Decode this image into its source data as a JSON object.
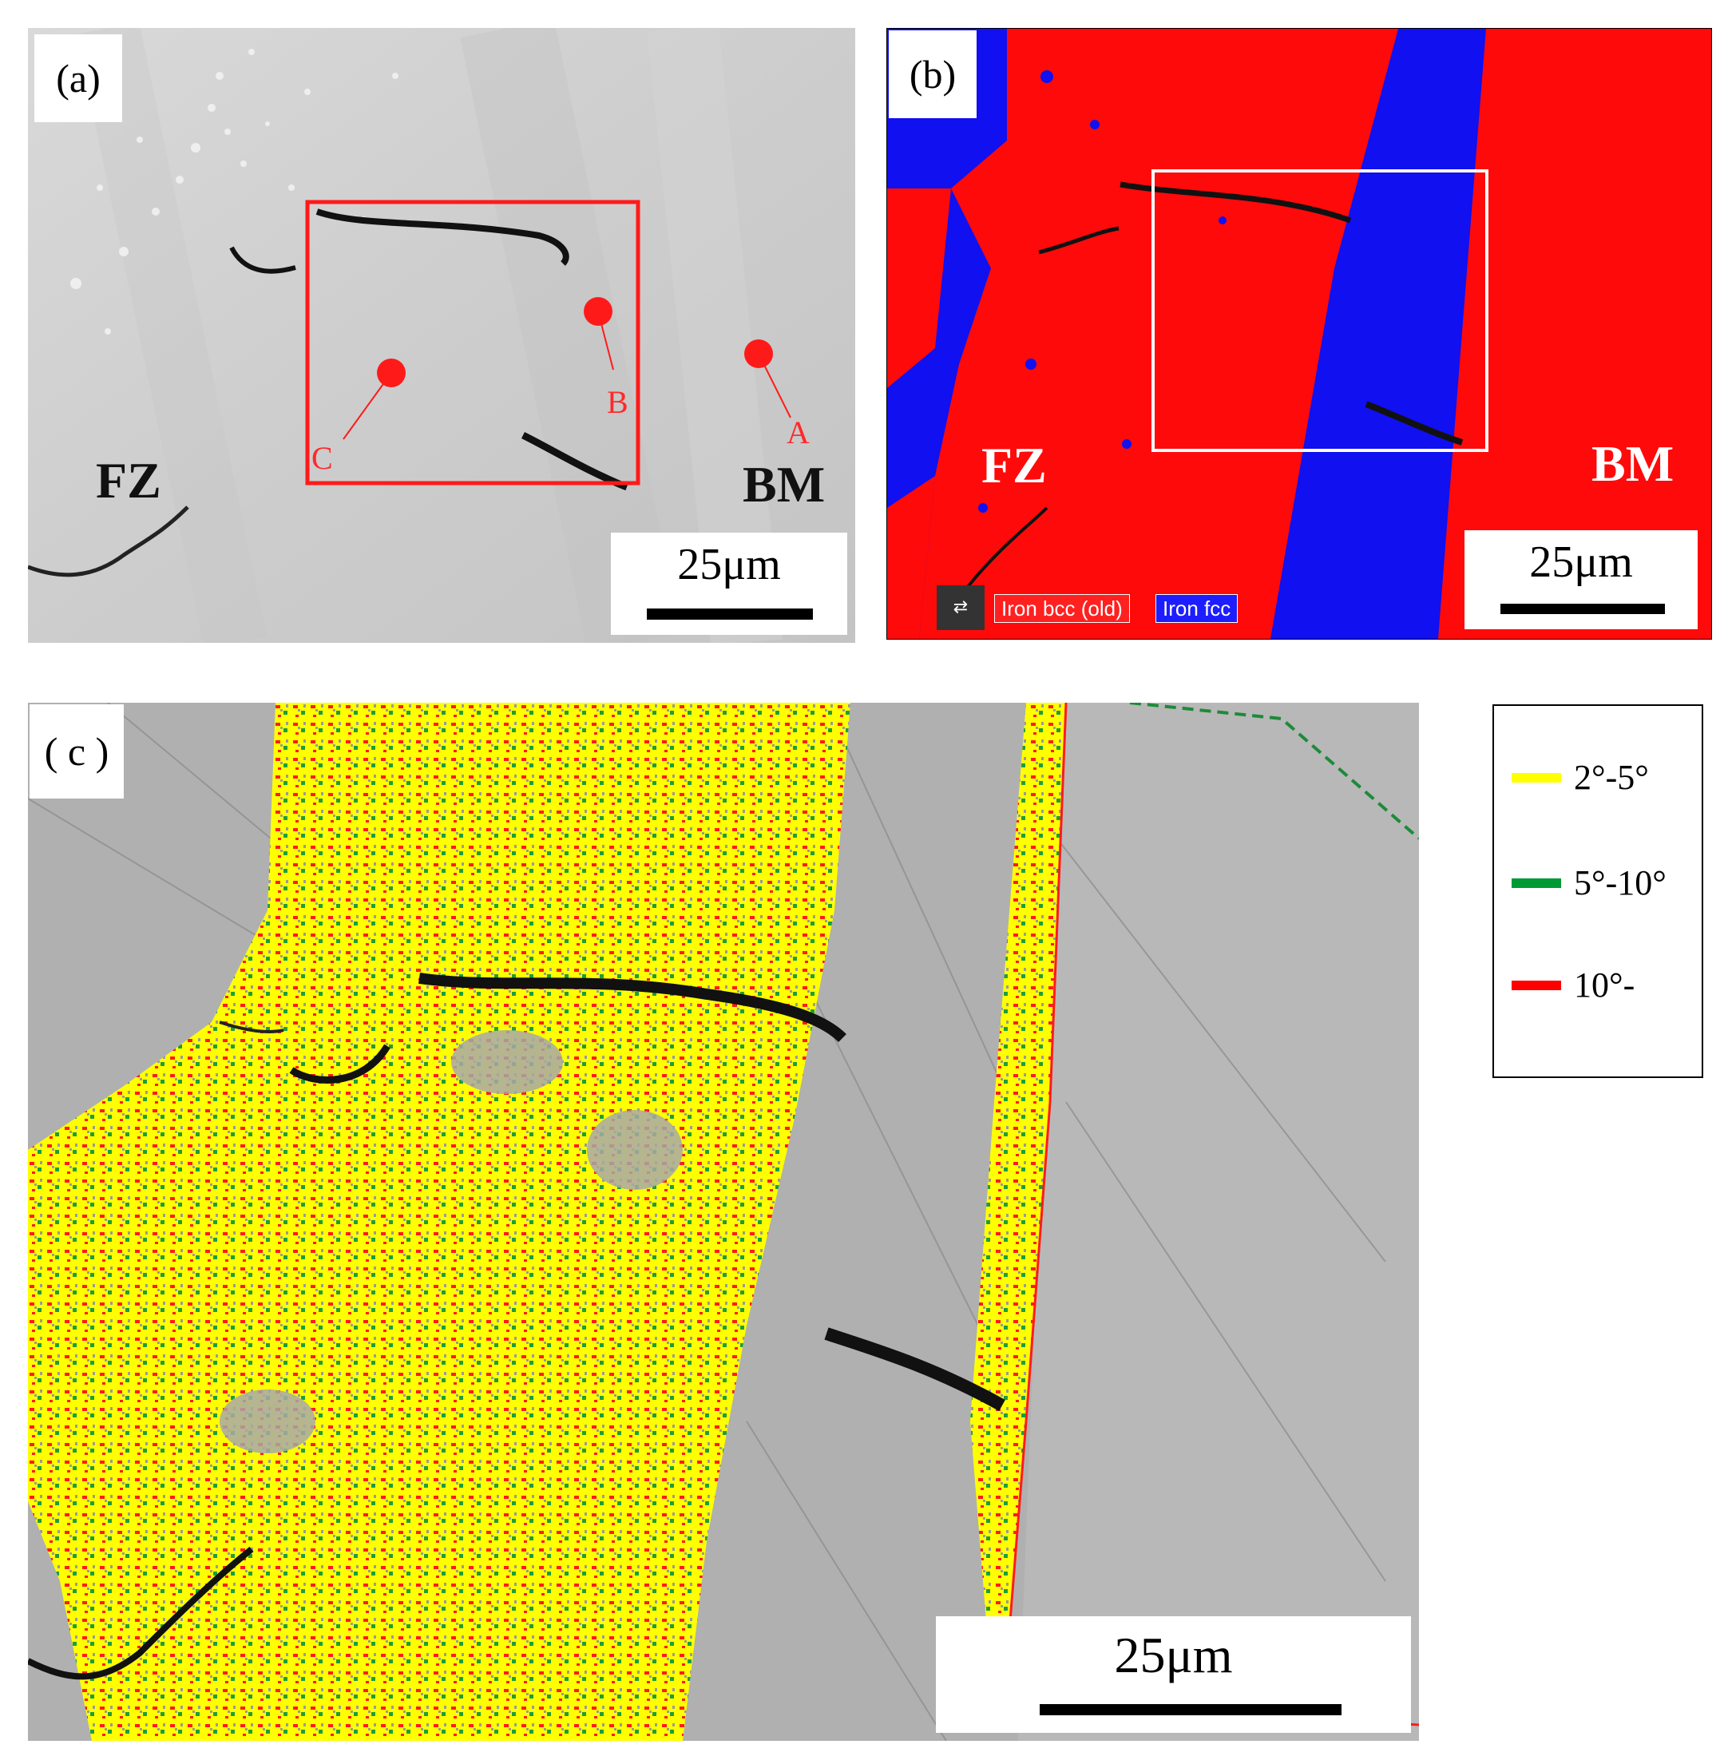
{
  "panel_a": {
    "label": "(a)",
    "zone_left": "FZ",
    "zone_right": "BM",
    "points": [
      {
        "letter": "A"
      },
      {
        "letter": "B"
      },
      {
        "letter": "C"
      }
    ],
    "scale_text": "25μm",
    "colors": {
      "marker": "#ff1a1a",
      "box": "#ff1a1a"
    }
  },
  "panel_b": {
    "label": "(b)",
    "zone_left": "FZ",
    "zone_right": "BM",
    "scale_text": "25μm",
    "legend_chips": [
      {
        "text": "Iron bcc (old)",
        "color": "#ff2020"
      },
      {
        "text": "Iron fcc",
        "color": "#1d1dff"
      }
    ],
    "colors": {
      "bcc": "#ff0a0a",
      "fcc": "#1010f0"
    }
  },
  "panel_c": {
    "label": "( c )",
    "scale_text": "25μm"
  },
  "legend": {
    "items": [
      {
        "text": "2°-5°",
        "color": "#ffff00"
      },
      {
        "text": "5°-10°",
        "color": "#009933"
      },
      {
        "text": "10°-",
        "color": "#ff0000"
      }
    ]
  }
}
